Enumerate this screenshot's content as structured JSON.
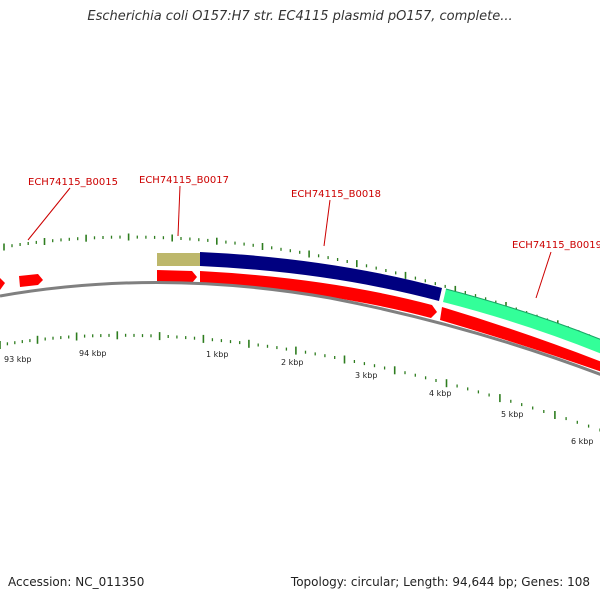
{
  "title": "Escherichia coli O157:H7 str. EC4115 plasmid pO157, complete...",
  "footer": {
    "accession": "Accession: NC_011350",
    "summary": "Topology: circular; Length: 94,644 bp; Genes: 108"
  },
  "colors": {
    "gene_label": "#cc0000",
    "cds_red": "#ff0000",
    "backbone_gray": "#808080",
    "tick_green": "#2e7d1f",
    "feature_olive": "#bdb76b",
    "feature_navy": "#000080",
    "feature_aqua": "#33ff99"
  },
  "gene_labels": [
    {
      "text": "ECH74115_B0015"
    },
    {
      "text": "ECH74115_B0017"
    },
    {
      "text": "ECH74115_B0018"
    },
    {
      "text": "ECH74115_B0019"
    }
  ],
  "tick_labels": [
    "93 kbp",
    "94 kbp",
    "1 kbp",
    "2 kbp",
    "3 kbp",
    "4 kbp",
    "5 kbp",
    "6 kbp"
  ]
}
